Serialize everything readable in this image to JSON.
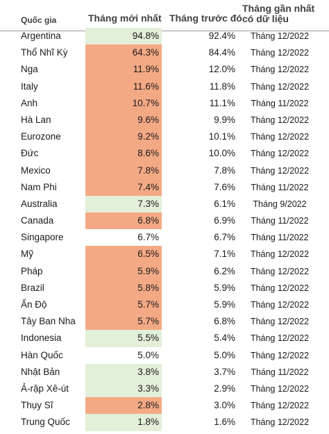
{
  "headers": {
    "country": "Quốc gia",
    "latest": "Tháng mới nhất",
    "previous": "Tháng trước đó",
    "latest_date": "Tháng gần nhất\ncó dữ liệu"
  },
  "colors": {
    "increase": "#f4a985",
    "decrease": "#e2efd9"
  },
  "rows": [
    {
      "country": "Argentina",
      "latest": "94.8%",
      "previous": "92.4%",
      "date": "Tháng 12/2022",
      "trend": "down"
    },
    {
      "country": "Thổ Nhĩ Kỳ",
      "latest": "64.3%",
      "previous": "84.4%",
      "date": "Tháng 12/2022",
      "trend": "up"
    },
    {
      "country": "Nga",
      "latest": "11.9%",
      "previous": "12.0%",
      "date": "Tháng 12/2022",
      "trend": "up"
    },
    {
      "country": "Italy",
      "latest": "11.6%",
      "previous": "11.8%",
      "date": "Tháng 12/2022",
      "trend": "up"
    },
    {
      "country": "Anh",
      "latest": "10.7%",
      "previous": "11.1%",
      "date": "Tháng 11/2022",
      "trend": "up"
    },
    {
      "country": "Hà Lan",
      "latest": "9.6%",
      "previous": "9.9%",
      "date": "Tháng 12/2022",
      "trend": "up"
    },
    {
      "country": "Eurozone",
      "latest": "9.2%",
      "previous": "10.1%",
      "date": "Tháng 12/2022",
      "trend": "up"
    },
    {
      "country": "Đức",
      "latest": "8.6%",
      "previous": "10.0%",
      "date": "Tháng 12/2022",
      "trend": "up"
    },
    {
      "country": "Mexico",
      "latest": "7.8%",
      "previous": "7.8%",
      "date": "Tháng 12/2022",
      "trend": "up"
    },
    {
      "country": "Nam Phi",
      "latest": "7.4%",
      "previous": "7.6%",
      "date": "Tháng 11/2022",
      "trend": "up"
    },
    {
      "country": "Australia",
      "latest": "7.3%",
      "previous": "6.1%",
      "date": "Tháng 9/2022",
      "trend": "down"
    },
    {
      "country": "Canada",
      "latest": "6.8%",
      "previous": "6.9%",
      "date": "Tháng 11/2022",
      "trend": "up"
    },
    {
      "country": "Singapore",
      "latest": "6.7%",
      "previous": "6.7%",
      "date": "Tháng 11/2022",
      "trend": "none"
    },
    {
      "country": "Mỹ",
      "latest": "6.5%",
      "previous": "7.1%",
      "date": "Tháng 12/2022",
      "trend": "up"
    },
    {
      "country": "Pháp",
      "latest": "5.9%",
      "previous": "6.2%",
      "date": "Tháng 12/2022",
      "trend": "up"
    },
    {
      "country": "Brazil",
      "latest": "5.8%",
      "previous": "5.9%",
      "date": "Tháng 12/2022",
      "trend": "up"
    },
    {
      "country": "Ấn Độ",
      "latest": "5.7%",
      "previous": "5.9%",
      "date": "Tháng 12/2022",
      "trend": "up"
    },
    {
      "country": "Tây Ban Nha",
      "latest": "5.7%",
      "previous": "6.8%",
      "date": "Tháng 12/2022",
      "trend": "up"
    },
    {
      "country": "Indonesia",
      "latest": "5.5%",
      "previous": "5.4%",
      "date": "Tháng 12/2022",
      "trend": "down"
    },
    {
      "country": "Hàn Quốc",
      "latest": "5.0%",
      "previous": "5.0%",
      "date": "Tháng 12/2022",
      "trend": "none"
    },
    {
      "country": "Nhật Bản",
      "latest": "3.8%",
      "previous": "3.7%",
      "date": "Tháng 11/2022",
      "trend": "down"
    },
    {
      "country": "Ả-rập Xê-út",
      "latest": "3.3%",
      "previous": "2.9%",
      "date": "Tháng 12/2022",
      "trend": "down"
    },
    {
      "country": "Thụy Sĩ",
      "latest": "2.8%",
      "previous": "3.0%",
      "date": "Tháng 12/2022",
      "trend": "up"
    },
    {
      "country": "Trung Quốc",
      "latest": "1.8%",
      "previous": "1.6%",
      "date": "Tháng 12/2022",
      "trend": "down"
    }
  ]
}
